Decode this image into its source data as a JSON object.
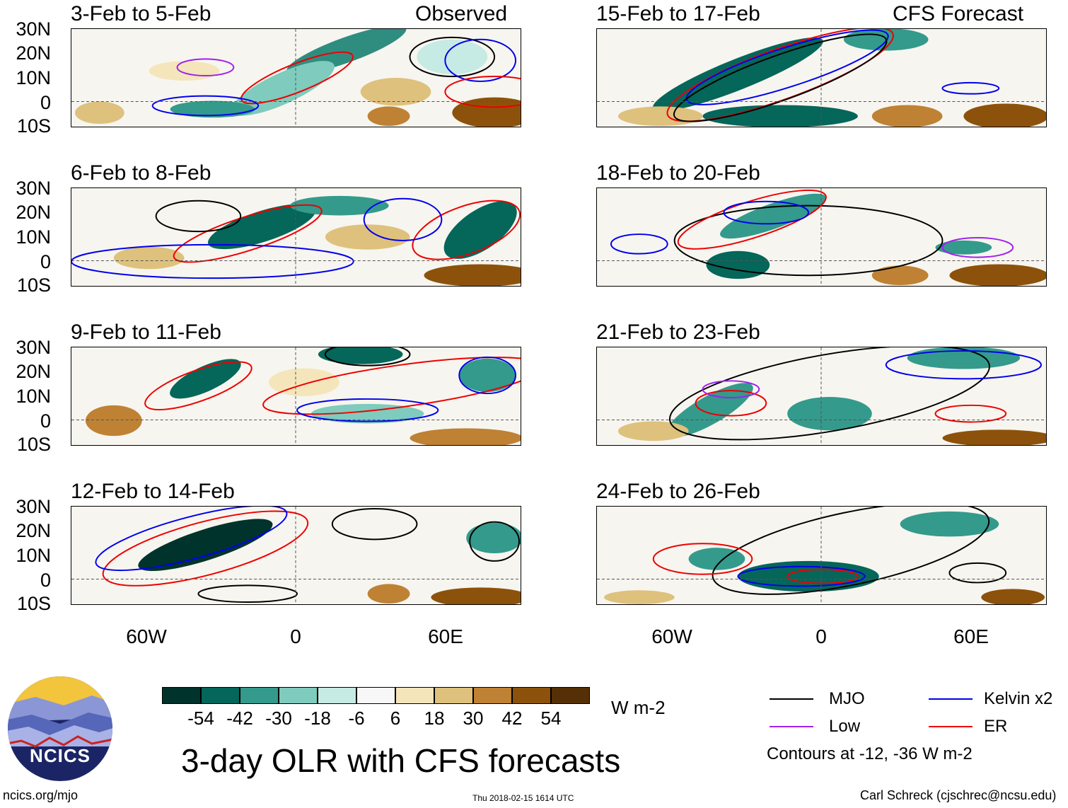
{
  "panels": [
    {
      "title": "3-Feb to 5-Feb",
      "tag": "Observed"
    },
    {
      "title": "6-Feb to 8-Feb",
      "tag": ""
    },
    {
      "title": "9-Feb to 11-Feb",
      "tag": ""
    },
    {
      "title": "12-Feb to 14-Feb",
      "tag": ""
    },
    {
      "title": "15-Feb to 17-Feb",
      "tag": "CFS Forecast"
    },
    {
      "title": "18-Feb to 20-Feb",
      "tag": ""
    },
    {
      "title": "21-Feb to 23-Feb",
      "tag": ""
    },
    {
      "title": "24-Feb to 26-Feb",
      "tag": ""
    }
  ],
  "lat_labels": [
    "30N",
    "20N",
    "10N",
    "0",
    "10S"
  ],
  "lon_labels": [
    "60W",
    "0",
    "60E"
  ],
  "colorbar": {
    "colors": [
      "#00332b",
      "#05665a",
      "#349a8c",
      "#7fcbbd",
      "#c6eae4",
      "#f7f7f7",
      "#f5e5bb",
      "#dec17d",
      "#bf8134",
      "#8c520b",
      "#553006"
    ],
    "labels": [
      "-54",
      "-42",
      "-30",
      "-18",
      "-6",
      "6",
      "18",
      "30",
      "42",
      "54"
    ],
    "units": "W m-2"
  },
  "legend": {
    "items": [
      {
        "label": "MJO",
        "color": "#000000"
      },
      {
        "label": "Kelvin x2",
        "color": "#0000ee"
      },
      {
        "label": "Low",
        "color": "#a020f0"
      },
      {
        "label": "ER",
        "color": "#ee0000"
      }
    ],
    "note": "Contours at -12, -36 W m-2"
  },
  "title": "3-day OLR with CFS forecasts",
  "logo_text": "NCICS",
  "footer": {
    "url": "ncics.org/mjo",
    "timestamp": "Thu 2018-02-15 1614 UTC",
    "credit": "Carl Schreck (cjschrec@ncsu.edu)"
  }
}
